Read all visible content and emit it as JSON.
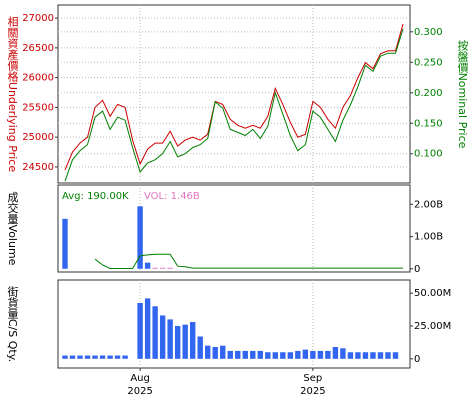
{
  "chart_data": [
    {
      "type": "line",
      "ylabel": "相關資產價格Underlying Price",
      "ylabel_color": "#cc0000",
      "y2label": "按盤價Nominal Price",
      "y2label_color": "#008000",
      "categories": [
        null,
        null,
        null,
        null,
        null,
        null,
        null,
        null,
        null,
        null,
        null,
        null,
        null,
        null,
        null,
        null,
        null,
        null,
        null,
        null,
        null,
        null,
        null,
        null,
        null,
        null,
        null,
        null,
        null,
        null,
        null,
        null,
        null,
        null,
        null,
        null,
        null,
        null,
        null,
        null,
        null,
        null,
        null,
        null,
        null,
        null
      ],
      "series": [
        {
          "color": "#cc0000",
          "values": [
            24450,
            24750,
            24900,
            25000,
            25500,
            25620,
            25350,
            25550,
            25500,
            24950,
            24550,
            24800,
            24900,
            24900,
            25100,
            24850,
            24950,
            25000,
            24950,
            25050,
            25600,
            25550,
            25300,
            25200,
            25150,
            25200,
            25150,
            25350,
            25820,
            25550,
            25250,
            25000,
            25050,
            25600,
            25500,
            25300,
            25150,
            25500,
            25700,
            26000,
            26250,
            26150,
            26400,
            26450,
            26450,
            26900
          ]
        },
        {
          "color": "#008000",
          "axis": "y2",
          "values": [
            0.055,
            0.09,
            0.105,
            0.115,
            0.16,
            0.17,
            0.14,
            0.16,
            0.155,
            0.11,
            0.07,
            0.085,
            0.09,
            0.1,
            0.12,
            0.095,
            0.1,
            0.11,
            0.115,
            0.125,
            0.185,
            0.175,
            0.14,
            0.135,
            0.13,
            0.14,
            0.125,
            0.145,
            0.2,
            0.165,
            0.13,
            0.105,
            0.115,
            0.17,
            0.16,
            0.14,
            0.12,
            0.155,
            0.18,
            0.21,
            0.245,
            0.235,
            0.26,
            0.265,
            0.265,
            0.305
          ]
        }
      ],
      "ylim": [
        24230,
        27220
      ],
      "yticks": [
        24500,
        25000,
        25500,
        26000,
        26500,
        27000
      ],
      "ytick_color": "#cc0000",
      "y2lim": [
        0.052,
        0.344
      ],
      "y2ticks": [
        {
          "value": 0.1,
          "label": "0.100"
        },
        {
          "value": 0.15,
          "label": "0.150"
        },
        {
          "value": 0.2,
          "label": "0.200"
        },
        {
          "value": 0.25,
          "label": "0.250"
        },
        {
          "value": 0.3,
          "label": "0.300"
        }
      ],
      "y2tick_color": "#008000",
      "grid": true
    },
    {
      "type": "bar",
      "ylabel": "成交量Volume",
      "ylabel_color": "#000000",
      "annotations": [
        {
          "text": "Avg: 190.00K",
          "color": "#008000"
        },
        {
          "text": "VOL: 1.46B",
          "color": "#e377c2"
        }
      ],
      "categories": [
        null,
        null,
        null,
        null,
        null,
        null,
        null,
        null,
        null,
        null,
        null,
        null,
        null,
        null,
        null,
        null,
        null,
        null,
        null,
        null,
        null,
        null,
        null,
        null,
        null,
        null,
        null,
        null,
        null,
        null,
        null,
        null,
        null,
        null,
        null,
        null,
        null,
        null,
        null,
        null,
        null,
        null,
        null,
        null,
        null,
        null
      ],
      "series": [
        {
          "color": "#3366ee",
          "values": [
            1550000000,
            null,
            null,
            null,
            null,
            null,
            null,
            null,
            null,
            null,
            1940000000,
            190000000,
            null,
            null,
            null,
            null,
            null,
            null,
            null,
            null,
            null,
            null,
            null,
            null,
            null,
            null,
            null,
            null,
            null,
            null,
            null,
            null,
            null,
            null,
            null,
            null,
            null,
            null,
            null,
            null,
            null,
            null,
            null,
            null,
            null,
            null
          ]
        },
        {
          "color": "#e377c2",
          "values": [
            null,
            null,
            null,
            null,
            null,
            null,
            null,
            null,
            null,
            null,
            null,
            null,
            30000000,
            30000000,
            30000000,
            null,
            null,
            null,
            null,
            null,
            null,
            null,
            null,
            null,
            null,
            null,
            null,
            null,
            null,
            null,
            null,
            null,
            null,
            null,
            null,
            null,
            null,
            null,
            null,
            null,
            null,
            null,
            null,
            null,
            null,
            null
          ]
        },
        {
          "type": "line",
          "color": "#008000",
          "values": [
            null,
            null,
            null,
            null,
            300000000,
            120000000,
            10000000,
            10000000,
            10000000,
            10000000,
            400000000,
            430000000,
            450000000,
            450000000,
            450000000,
            80000000,
            60000000,
            20000000,
            20000000,
            20000000,
            20000000,
            20000000,
            20000000,
            20000000,
            20000000,
            20000000,
            20000000,
            20000000,
            20000000,
            20000000,
            20000000,
            20000000,
            20000000,
            20000000,
            20000000,
            20000000,
            20000000,
            20000000,
            20000000,
            20000000,
            20000000,
            20000000,
            20000000,
            20000000,
            20000000,
            20000000
          ]
        }
      ],
      "y2lim": [
        -100000000,
        2600000000
      ],
      "y2ticks": [
        0,
        {
          "value": 1000000000,
          "label": "1.00B"
        },
        {
          "value": 2000000000,
          "label": "2.00B"
        }
      ],
      "y2tick_color": "#000000"
    },
    {
      "type": "bar",
      "ylabel": "街貨量C/S Qty.",
      "ylabel_color": "#000000",
      "categories": [
        null,
        null,
        null,
        null,
        null,
        null,
        null,
        null,
        null,
        null,
        null,
        null,
        null,
        null,
        null,
        null,
        null,
        null,
        null,
        null,
        null,
        null,
        null,
        null,
        null,
        null,
        null,
        null,
        null,
        null,
        null,
        null,
        null,
        null,
        null,
        null,
        null,
        null,
        null,
        null,
        null,
        null,
        null,
        null,
        null,
        null
      ],
      "series": [
        {
          "color": "#3366ee",
          "values": [
            2500000,
            2500000,
            2500000,
            2500000,
            2500000,
            2500000,
            2500000,
            2500000,
            2500000,
            null,
            42500000,
            46000000,
            40000000,
            33000000,
            30000000,
            25000000,
            26000000,
            28000000,
            17000000,
            10000000,
            9000000,
            10000000,
            6000000,
            6000000,
            6000000,
            6000000,
            6000000,
            5000000,
            5000000,
            5000000,
            5000000,
            6000000,
            7000000,
            6000000,
            6000000,
            6000000,
            9000000,
            8000000,
            5000000,
            5000000,
            5000000,
            5000000,
            5000000,
            5000000,
            5000000,
            null
          ]
        }
      ],
      "y2lim": [
        -7000000,
        60000000
      ],
      "y2ticks": [
        0,
        {
          "value": 25000000,
          "label": "25.00M"
        },
        {
          "value": 50000000,
          "label": "50.00M"
        }
      ],
      "y2tick_color": "#000000",
      "xticks": [
        {
          "value": 10,
          "label": "Aug",
          "year": "2025"
        },
        {
          "value": 33,
          "label": "Sep",
          "year": "2025"
        }
      ]
    }
  ]
}
